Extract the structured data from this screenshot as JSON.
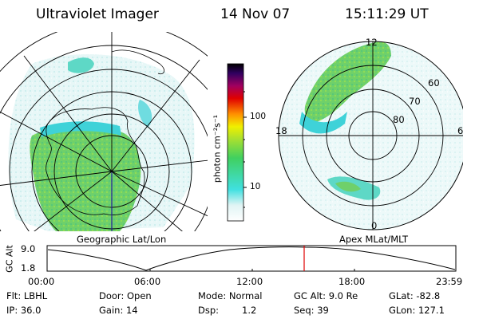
{
  "header": {
    "title": "Ultraviolet Imager",
    "date": "14 Nov 07",
    "time": "15:11:29 UT"
  },
  "left_panel": {
    "caption": "Geographic Lat/Lon"
  },
  "right_panel": {
    "caption": "Apex MLat/MLT",
    "mlt_labels": {
      "top": "12",
      "left": "18",
      "right": "6",
      "bottom": "0"
    },
    "lat_labels": [
      "60",
      "70",
      "80"
    ]
  },
  "colorbar": {
    "unit_label": "photon cm⁻²s⁻¹",
    "ticks": [
      "100",
      "10"
    ],
    "scale": "log",
    "colors": [
      "#ffffff",
      "#40e0e0",
      "#40d060",
      "#a8e030",
      "#f0f000",
      "#ff9000",
      "#e00000",
      "#a00060",
      "#300060",
      "#000000"
    ]
  },
  "altitude_plot": {
    "ylabel": "GC Alt",
    "y_ticks": [
      "9.0",
      "1.8"
    ],
    "x_ticks": [
      "00:00",
      "06:00",
      "12:00",
      "18:00",
      "23:59"
    ],
    "current_time_marker_color": "#e00000"
  },
  "info": {
    "filter": "Flt: LBHL",
    "door": "Door: Open",
    "mode": "Mode: Normal",
    "gc_alt": "GC Alt: 9.0 Re",
    "glat": "GLat: -82.8",
    "ip": "IP: 36.0",
    "gain": "Gain: 14",
    "dsp_label": "Dsp:",
    "dsp_value": "1.2",
    "seq": "Seq: 39",
    "glon": "GLon: 127.1"
  }
}
